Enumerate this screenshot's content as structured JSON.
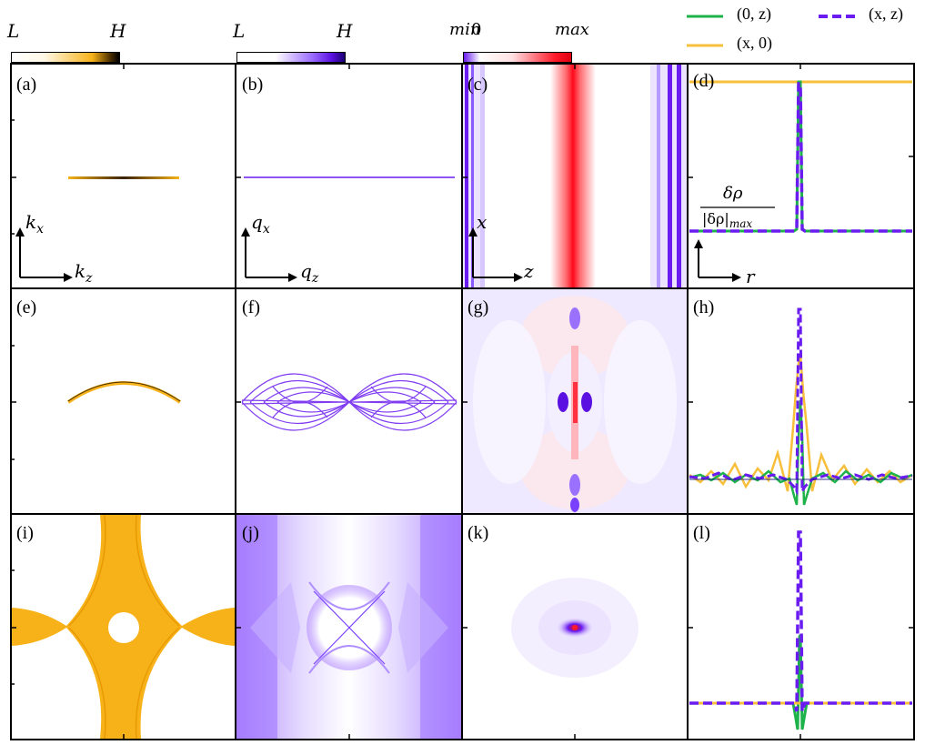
{
  "colorbars": [
    {
      "left": "L",
      "right": "H",
      "gradient": [
        "#ffffff",
        "#fff3d6",
        "#f7b21a",
        "#1a1000"
      ]
    },
    {
      "left": "L",
      "right": "H",
      "gradient": [
        "#ffffff",
        "#ffffff",
        "#7a3cff",
        "#000080"
      ]
    },
    {
      "left": "min",
      "left2": "0",
      "right": "max",
      "gradient": [
        "#7a3cff",
        "#ffffff",
        "#ff1a2a"
      ]
    }
  ],
  "legend": {
    "items": [
      {
        "label": "(0, z)",
        "color": "#1db34a",
        "style": "solid"
      },
      {
        "label": "(x, z)",
        "color": "#6a1cf0",
        "style": "dashed"
      },
      {
        "label": "(x, 0)",
        "color": "#f7bf3a",
        "style": "solid"
      }
    ]
  },
  "panels": [
    {
      "label": "(a)"
    },
    {
      "label": "(b)"
    },
    {
      "label": "(c)"
    },
    {
      "label": "(d)"
    },
    {
      "label": "(e)"
    },
    {
      "label": "(f)"
    },
    {
      "label": "(g)"
    },
    {
      "label": "(h)"
    },
    {
      "label": "(i)"
    },
    {
      "label": "(j)"
    },
    {
      "label": "(k)"
    },
    {
      "label": "(l)"
    }
  ],
  "axes": {
    "a": {
      "vertical": "k",
      "vertical_sub": "x",
      "horizontal": "k",
      "horizontal_sub": "z"
    },
    "b": {
      "vertical": "q",
      "vertical_sub": "x",
      "horizontal": "q",
      "horizontal_sub": "z"
    },
    "c": {
      "vertical": "x",
      "horizontal": "z"
    },
    "d": {
      "horizontal": "r",
      "ratio_num": "δρ",
      "ratio_den": "|δρ|",
      "ratio_den_sub": "max"
    }
  },
  "colors": {
    "orange": "#f7b21a",
    "purple": "#6a1cf0",
    "red": "#ff1a2a",
    "green": "#1db34a"
  }
}
